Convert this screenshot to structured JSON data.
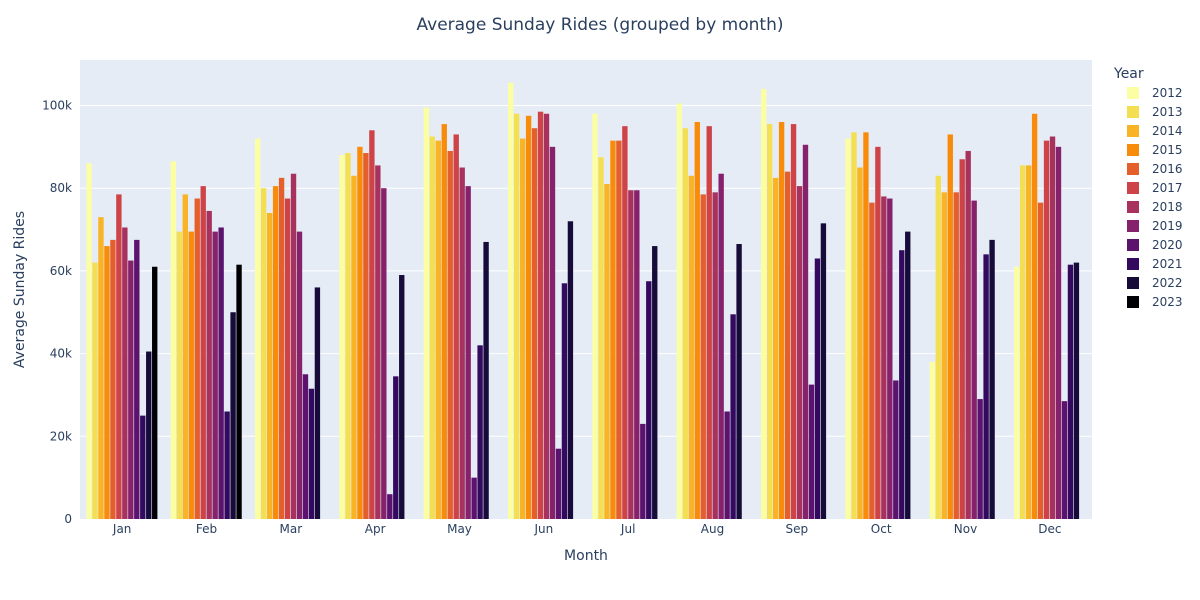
{
  "chart_data": {
    "type": "bar",
    "title": "Average Sunday Rides (grouped by month)",
    "xlabel": "Month",
    "ylabel": "Average Sunday Rides",
    "ylim": [
      0,
      111000
    ],
    "yticks": [
      0,
      20000,
      40000,
      60000,
      80000,
      100000
    ],
    "ytick_labels": [
      "0",
      "20k",
      "40k",
      "60k",
      "80k",
      "100k"
    ],
    "grid": true,
    "legend_title": "Year",
    "legend_position": "right",
    "categories": [
      "Jan",
      "Feb",
      "Mar",
      "Apr",
      "May",
      "Jun",
      "Jul",
      "Aug",
      "Sep",
      "Oct",
      "Nov",
      "Dec"
    ],
    "series": [
      {
        "name": "2012",
        "color": "#fcfea4",
        "values": [
          86000,
          86500,
          92000,
          88000,
          99500,
          105500,
          98000,
          100500,
          104000,
          92000,
          38000,
          61000
        ]
      },
      {
        "name": "2013",
        "color": "#f4df53",
        "values": [
          62000,
          69500,
          80000,
          88500,
          92500,
          98000,
          87500,
          94500,
          95500,
          93500,
          83000,
          85500
        ]
      },
      {
        "name": "2014",
        "color": "#f9b425",
        "values": [
          73000,
          78500,
          74000,
          83000,
          91500,
          92000,
          81000,
          83000,
          82500,
          85000,
          79000,
          85500
        ]
      },
      {
        "name": "2015",
        "color": "#f88c0a",
        "values": [
          66000,
          69500,
          80500,
          90000,
          95500,
          97500,
          91500,
          96000,
          96000,
          93500,
          93000,
          98000
        ]
      },
      {
        "name": "2016",
        "color": "#e45f2b",
        "values": [
          67500,
          77500,
          82500,
          88500,
          89000,
          94500,
          91500,
          78500,
          84000,
          76500,
          79000,
          76500
        ]
      },
      {
        "name": "2017",
        "color": "#cd4347",
        "values": [
          78500,
          80500,
          77500,
          94000,
          93000,
          98500,
          95000,
          95000,
          95500,
          90000,
          87000,
          91500
        ]
      },
      {
        "name": "2018",
        "color": "#a8325e",
        "values": [
          70500,
          74500,
          83500,
          85500,
          85000,
          98000,
          79500,
          79000,
          80500,
          78000,
          89000,
          92500
        ]
      },
      {
        "name": "2019",
        "color": "#86216b",
        "values": [
          62500,
          69500,
          69500,
          80000,
          80500,
          90000,
          79500,
          83500,
          90500,
          77500,
          77000,
          90000
        ]
      },
      {
        "name": "2020",
        "color": "#5c136e",
        "values": [
          67500,
          70500,
          35000,
          6000,
          10000,
          17000,
          23000,
          26000,
          32500,
          33500,
          29000,
          28500
        ]
      },
      {
        "name": "2021",
        "color": "#330a5f",
        "values": [
          25000,
          26000,
          31500,
          34500,
          42000,
          57000,
          57500,
          49500,
          63000,
          65000,
          64000,
          61500
        ]
      },
      {
        "name": "2022",
        "color": "#160b39",
        "values": [
          40500,
          50000,
          56000,
          59000,
          67000,
          72000,
          66000,
          66500,
          71500,
          69500,
          67500,
          62000
        ]
      },
      {
        "name": "2023",
        "color": "#000004",
        "values": [
          61000,
          61500,
          null,
          null,
          null,
          null,
          null,
          null,
          null,
          null,
          null,
          null
        ]
      }
    ]
  }
}
